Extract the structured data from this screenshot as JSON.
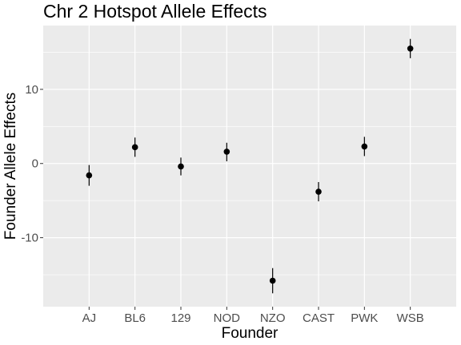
{
  "chart_data": {
    "type": "scatter",
    "title": "Chr 2 Hotspot Allele Effects",
    "xlabel": "Founder",
    "ylabel": "Founder Allele Effects",
    "categories": [
      "AJ",
      "BL6",
      "129",
      "NOD",
      "NZO",
      "CAST",
      "PWK",
      "WSB"
    ],
    "values": [
      -1.6,
      2.2,
      -0.4,
      1.6,
      -15.8,
      -3.8,
      2.3,
      15.5
    ],
    "error_low": [
      -3.0,
      0.9,
      -1.6,
      0.3,
      -17.5,
      -5.1,
      1.0,
      14.2
    ],
    "error_high": [
      -0.2,
      3.5,
      0.8,
      2.8,
      -14.1,
      -2.5,
      3.6,
      16.8
    ],
    "ylim": [
      -19.3,
      18.6
    ],
    "yticks": [
      -10,
      0,
      10
    ],
    "ytick_labels": [
      "-10",
      "0",
      "10"
    ],
    "grid": true,
    "colors": {
      "panel": "#ebebeb",
      "grid_major": "#ffffff",
      "point": "#000000"
    }
  }
}
